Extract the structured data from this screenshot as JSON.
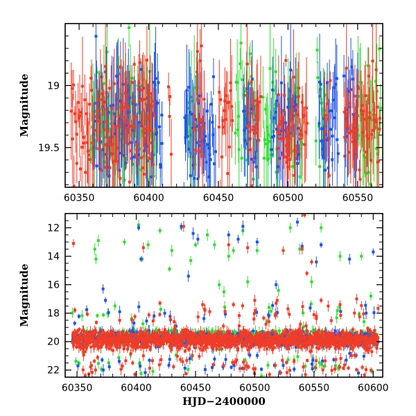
{
  "chart_data": [
    {
      "type": "scatter",
      "panel": "top",
      "title": "",
      "xlabel": "",
      "ylabel": "Magnitude",
      "xlim": [
        60340,
        60568
      ],
      "ylim": [
        19.82,
        18.5
      ],
      "y_inverted": true,
      "x_ticks": [
        "60350",
        "60400",
        "60450",
        "60500",
        "60550"
      ],
      "x_tick_values": [
        60350,
        60400,
        60450,
        60500,
        60550
      ],
      "y_ticks": [
        "19",
        "19.5"
      ],
      "y_tick_values": [
        19,
        19.5
      ],
      "series": [
        {
          "color": "#33dd33",
          "note_bands": [
            [
              60358,
              60405
            ],
            [
              60428,
              60436
            ],
            [
              60462,
              60478
            ],
            [
              60482,
              60492
            ],
            [
              60500,
              60510
            ],
            [
              60520,
              60528
            ],
            [
              60550,
              60566
            ]
          ]
        },
        {
          "color": "#1f55e6",
          "note_bands": [
            [
              60360,
              60410
            ],
            [
              60425,
              60448
            ],
            [
              60468,
              60478
            ],
            [
              60488,
              60508
            ],
            [
              60522,
              60536
            ],
            [
              60540,
              60550
            ]
          ]
        },
        {
          "color": "#f03c28",
          "note_bands": [
            [
              60344,
              60360
            ],
            [
              60362,
              60404
            ],
            [
              60414,
              60416
            ],
            [
              60432,
              60440
            ],
            [
              60450,
              60460
            ],
            [
              60470,
              60480
            ],
            [
              60492,
              60514
            ],
            [
              60526,
              60530
            ],
            [
              60540,
              60566
            ]
          ]
        }
      ]
    },
    {
      "type": "scatter",
      "panel": "bottom",
      "title": "",
      "xlabel": "HJD−2400000",
      "ylabel": "Magnitude",
      "xlim": [
        60340,
        60608
      ],
      "ylim": [
        22.5,
        11
      ],
      "y_inverted": true,
      "x_ticks": [
        "60350",
        "60400",
        "60450",
        "60500",
        "60550",
        "60600"
      ],
      "x_tick_values": [
        60350,
        60400,
        60450,
        60500,
        60550,
        60600
      ],
      "y_ticks": [
        "12",
        "14",
        "16",
        "18",
        "20",
        "22"
      ],
      "y_tick_values": [
        12,
        14,
        16,
        18,
        20,
        22
      ],
      "series": [
        {
          "color": "#33dd33",
          "baseline_mag": 19.7,
          "outliers": [
            [
              60365,
              13.5
            ],
            [
              60366,
              14.2
            ],
            [
              60368,
              12.9
            ],
            [
              60376,
              18.0
            ],
            [
              60382,
              17.5
            ],
            [
              60390,
              13.0
            ],
            [
              60396,
              18.4
            ],
            [
              60402,
              11.8
            ],
            [
              60405,
              14.2
            ],
            [
              60410,
              13.2
            ],
            [
              60420,
              12.2
            ],
            [
              60428,
              14.9
            ],
            [
              60430,
              13.6
            ],
            [
              60438,
              12.0
            ],
            [
              60446,
              14.3
            ],
            [
              60450,
              13.2
            ],
            [
              60460,
              12.5
            ],
            [
              60466,
              13.2
            ],
            [
              60470,
              16.0
            ],
            [
              60474,
              16.5
            ],
            [
              60478,
              14.0
            ],
            [
              60482,
              13.6
            ],
            [
              60490,
              12.2
            ],
            [
              60494,
              15.8
            ],
            [
              60502,
              13.6
            ],
            [
              60512,
              17.6
            ],
            [
              60520,
              16.4
            ],
            [
              60530,
              12.0
            ],
            [
              60538,
              13.5
            ],
            [
              60548,
              15.8
            ],
            [
              60556,
              12.0
            ],
            [
              60572,
              14.0
            ],
            [
              60590,
              14.0
            ],
            [
              60598,
              16.8
            ]
          ]
        },
        {
          "color": "#1f55e6",
          "baseline_mag": 19.8,
          "outliers": [
            [
              60372,
              16.3
            ],
            [
              60374,
              17.1
            ],
            [
              60386,
              17.9
            ],
            [
              60402,
              12.0
            ],
            [
              60404,
              14.2
            ],
            [
              60415,
              18.2
            ],
            [
              60438,
              11.9
            ],
            [
              60444,
              15.4
            ],
            [
              60448,
              12.4
            ],
            [
              60452,
              12.8
            ],
            [
              60478,
              12.5
            ],
            [
              60486,
              12.8
            ],
            [
              60490,
              11.9
            ],
            [
              60502,
              13.0
            ],
            [
              60512,
              18.2
            ],
            [
              60518,
              16.0
            ],
            [
              60536,
              11.6
            ],
            [
              60540,
              13.3
            ],
            [
              60552,
              14.4
            ],
            [
              60556,
              13.2
            ],
            [
              60580,
              14.2
            ],
            [
              60594,
              18.0
            ],
            [
              60600,
              13.7
            ]
          ]
        },
        {
          "color": "#f03c28",
          "baseline_mag": 19.9,
          "outliers": [
            [
              60347,
              13.1
            ],
            [
              60386,
              18.5
            ],
            [
              60406,
              13.4
            ],
            [
              60420,
              17.3
            ],
            [
              60432,
              18.6
            ],
            [
              60440,
              11.9
            ],
            [
              60456,
              17.4
            ],
            [
              60458,
              17.8
            ],
            [
              60462,
              17.9
            ],
            [
              60478,
              13.2
            ],
            [
              60482,
              17.4
            ],
            [
              60494,
              13.4
            ],
            [
              60500,
              17.1
            ],
            [
              60512,
              18.6
            ],
            [
              60518,
              17.3
            ],
            [
              60524,
              13.6
            ],
            [
              60528,
              17.7
            ],
            [
              60540,
              13.5
            ],
            [
              60542,
              11.1
            ],
            [
              60544,
              15.2
            ],
            [
              60548,
              14.4
            ],
            [
              60552,
              18.2
            ],
            [
              60556,
              17.1
            ],
            [
              60562,
              17.5
            ],
            [
              60572,
              17.4
            ],
            [
              60586,
              17.0
            ]
          ]
        }
      ]
    }
  ]
}
